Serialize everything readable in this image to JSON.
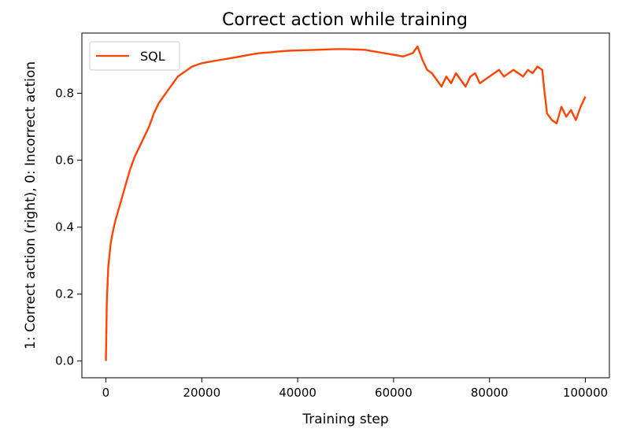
{
  "chart_data": {
    "type": "line",
    "title": "Correct action while training",
    "xlabel": "Training step",
    "ylabel": "1: Correct action (right), 0: Incorrect action",
    "xlim": [
      -5000,
      105000
    ],
    "ylim": [
      -0.05,
      0.98
    ],
    "x_ticks": [
      0,
      20000,
      40000,
      60000,
      80000,
      100000
    ],
    "x_tick_labels": [
      "0",
      "20000",
      "40000",
      "60000",
      "80000",
      "100000"
    ],
    "y_ticks": [
      0.0,
      0.2,
      0.4,
      0.6,
      0.8
    ],
    "y_tick_labels": [
      "0.0",
      "0.2",
      "0.4",
      "0.6",
      "0.8"
    ],
    "grid": false,
    "legend_position": "top-left",
    "series": [
      {
        "name": "SQL",
        "color": "#ff4500",
        "x": [
          0,
          200,
          500,
          1000,
          1500,
          2000,
          3000,
          4000,
          5000,
          6000,
          7000,
          8000,
          9000,
          10000,
          11000,
          12000,
          13000,
          14000,
          15000,
          16000,
          17000,
          18000,
          20000,
          22000,
          24000,
          26000,
          28000,
          30000,
          32000,
          34000,
          36000,
          38000,
          40000,
          42000,
          44000,
          46000,
          48000,
          50000,
          52000,
          54000,
          56000,
          58000,
          60000,
          62000,
          64000,
          65000,
          66000,
          67000,
          68000,
          69000,
          70000,
          71000,
          72000,
          73000,
          74000,
          75000,
          76000,
          77000,
          78000,
          79000,
          80000,
          81000,
          82000,
          83000,
          84000,
          85000,
          86000,
          87000,
          88000,
          89000,
          90000,
          91000,
          91500,
          92000,
          93000,
          94000,
          95000,
          96000,
          97000,
          98000,
          99000,
          100000
        ],
        "values": [
          0.0,
          0.18,
          0.28,
          0.35,
          0.39,
          0.42,
          0.47,
          0.52,
          0.57,
          0.61,
          0.64,
          0.67,
          0.7,
          0.74,
          0.77,
          0.79,
          0.81,
          0.83,
          0.85,
          0.86,
          0.87,
          0.88,
          0.89,
          0.895,
          0.9,
          0.905,
          0.91,
          0.915,
          0.92,
          0.922,
          0.925,
          0.927,
          0.928,
          0.929,
          0.93,
          0.931,
          0.932,
          0.932,
          0.931,
          0.93,
          0.925,
          0.92,
          0.915,
          0.91,
          0.92,
          0.94,
          0.9,
          0.87,
          0.86,
          0.84,
          0.82,
          0.85,
          0.83,
          0.86,
          0.84,
          0.82,
          0.85,
          0.86,
          0.83,
          0.84,
          0.85,
          0.86,
          0.87,
          0.85,
          0.86,
          0.87,
          0.86,
          0.85,
          0.87,
          0.86,
          0.88,
          0.87,
          0.8,
          0.74,
          0.72,
          0.71,
          0.76,
          0.73,
          0.75,
          0.72,
          0.76,
          0.79
        ]
      }
    ]
  }
}
